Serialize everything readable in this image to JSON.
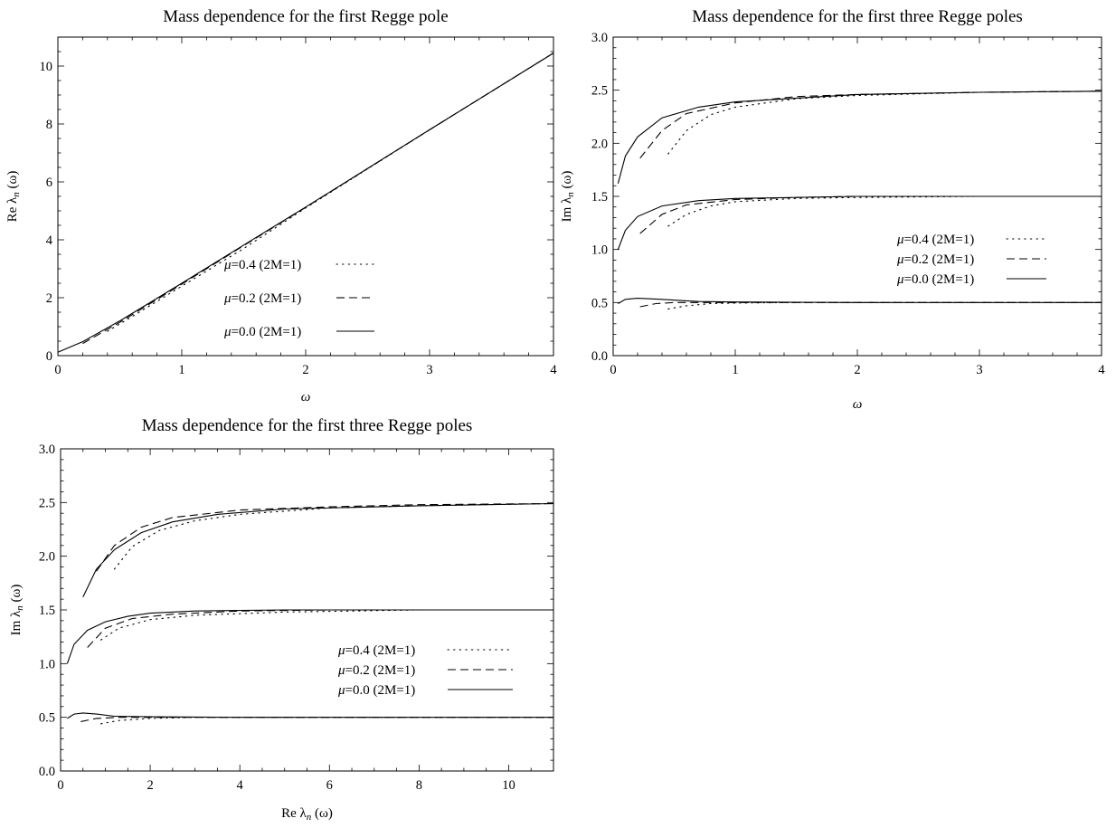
{
  "figure": {
    "legend_entries": [
      {
        "label": "μ=0.4 (2M=1)",
        "style": "dotted"
      },
      {
        "label": "μ=0.2 (2M=1)",
        "style": "dashed"
      },
      {
        "label": "μ=0.0 (2M=1)",
        "style": "solid"
      }
    ]
  },
  "chart_data": [
    {
      "type": "line",
      "title": "Mass dependence for the first Regge pole",
      "xlabel": "ω",
      "ylabel": "Re λ_n (ω)",
      "xlim": [
        0,
        4
      ],
      "ylim": [
        0,
        11
      ],
      "xticks": [
        0,
        1,
        2,
        3,
        4
      ],
      "yticks": [
        0,
        2,
        4,
        6,
        8,
        10
      ],
      "grid": false,
      "legend_position": "center",
      "series": [
        {
          "name": "μ=0.4 (2M=1)",
          "style": "dotted",
          "x": [
            0.4,
            0.6,
            1.0,
            1.5,
            2.0,
            3.0,
            4.0
          ],
          "y": [
            0.84,
            1.35,
            2.4,
            3.7,
            5.1,
            7.8,
            10.45
          ]
        },
        {
          "name": "μ=0.2 (2M=1)",
          "style": "dashed",
          "x": [
            0.2,
            0.5,
            1.0,
            1.5,
            2.0,
            3.0,
            4.0
          ],
          "y": [
            0.42,
            1.15,
            2.47,
            3.8,
            5.12,
            7.8,
            10.45
          ]
        },
        {
          "name": "μ=0.0 (2M=1)",
          "style": "solid",
          "x": [
            0.0,
            0.2,
            0.5,
            1.0,
            1.5,
            2.0,
            3.0,
            4.0
          ],
          "y": [
            0.12,
            0.48,
            1.2,
            2.5,
            3.82,
            5.13,
            7.8,
            10.45
          ]
        }
      ]
    },
    {
      "type": "line",
      "title": "Mass dependence for the first three Regge poles",
      "xlabel": "ω",
      "ylabel": "Im λ_n (ω)",
      "xlim": [
        0,
        4
      ],
      "ylim": [
        0,
        3
      ],
      "xticks": [
        0,
        1,
        2,
        3,
        4
      ],
      "yticks": [
        0.0,
        0.5,
        1.0,
        1.5,
        2.0,
        2.5,
        3.0
      ],
      "grid": false,
      "legend_position": "center-right",
      "series": [
        {
          "name": "μ=0.4 (2M=1)",
          "style": "dotted",
          "curves": [
            {
              "x": [
                0.45,
                0.6,
                0.8,
                1.0,
                1.5,
                2.0,
                3.0,
                4.0
              ],
              "y": [
                0.44,
                0.47,
                0.49,
                0.495,
                0.5,
                0.5,
                0.5,
                0.5
              ]
            },
            {
              "x": [
                0.45,
                0.6,
                0.8,
                1.0,
                1.5,
                2.0,
                3.0,
                4.0
              ],
              "y": [
                1.22,
                1.33,
                1.41,
                1.45,
                1.48,
                1.49,
                1.5,
                1.5
              ]
            },
            {
              "x": [
                0.45,
                0.6,
                0.8,
                1.0,
                1.5,
                2.0,
                3.0,
                4.0
              ],
              "y": [
                1.9,
                2.12,
                2.27,
                2.34,
                2.42,
                2.45,
                2.48,
                2.49
              ]
            }
          ]
        },
        {
          "name": "μ=0.2 (2M=1)",
          "style": "dashed",
          "curves": [
            {
              "x": [
                0.22,
                0.35,
                0.5,
                1.0,
                2.0,
                3.0,
                4.0
              ],
              "y": [
                0.46,
                0.49,
                0.5,
                0.5,
                0.5,
                0.5,
                0.5
              ]
            },
            {
              "x": [
                0.22,
                0.4,
                0.6,
                1.0,
                1.5,
                2.0,
                3.0,
                4.0
              ],
              "y": [
                1.15,
                1.33,
                1.42,
                1.47,
                1.49,
                1.5,
                1.5,
                1.5
              ]
            },
            {
              "x": [
                0.22,
                0.4,
                0.6,
                1.0,
                1.5,
                2.0,
                3.0,
                4.0
              ],
              "y": [
                1.86,
                2.12,
                2.28,
                2.38,
                2.44,
                2.46,
                2.48,
                2.49
              ]
            }
          ]
        },
        {
          "name": "μ=0.0 (2M=1)",
          "style": "solid",
          "curves": [
            {
              "x": [
                0.04,
                0.1,
                0.2,
                0.4,
                0.7,
                1.0,
                2.0,
                3.0,
                4.0
              ],
              "y": [
                0.49,
                0.53,
                0.54,
                0.53,
                0.51,
                0.505,
                0.5,
                0.5,
                0.5
              ]
            },
            {
              "x": [
                0.04,
                0.1,
                0.2,
                0.4,
                0.7,
                1.0,
                2.0,
                3.0,
                4.0
              ],
              "y": [
                1.0,
                1.18,
                1.31,
                1.41,
                1.46,
                1.48,
                1.5,
                1.5,
                1.5
              ]
            },
            {
              "x": [
                0.04,
                0.1,
                0.2,
                0.4,
                0.7,
                1.0,
                2.0,
                3.0,
                4.0
              ],
              "y": [
                1.62,
                1.88,
                2.06,
                2.24,
                2.34,
                2.39,
                2.46,
                2.48,
                2.49
              ]
            }
          ]
        }
      ]
    },
    {
      "type": "line",
      "title": "Mass dependence for the first three Regge poles",
      "xlabel": "Re λ_n (ω)",
      "ylabel": "Im λ_n (ω)",
      "xlim": [
        0,
        11
      ],
      "ylim": [
        0,
        3
      ],
      "xticks": [
        0,
        2,
        4,
        6,
        8,
        10
      ],
      "yticks": [
        0.0,
        0.5,
        1.0,
        1.5,
        2.0,
        2.5,
        3.0
      ],
      "grid": false,
      "legend_position": "center-right",
      "series": [
        {
          "name": "μ=0.4 (2M=1)",
          "style": "dotted",
          "curves": [
            {
              "x": [
                0.9,
                1.3,
                2.0,
                3.0,
                5.0,
                8.0,
                11.0
              ],
              "y": [
                0.44,
                0.47,
                0.49,
                0.5,
                0.5,
                0.5,
                0.5
              ]
            },
            {
              "x": [
                0.9,
                1.3,
                2.0,
                3.0,
                5.0,
                8.0,
                11.0
              ],
              "y": [
                1.22,
                1.33,
                1.41,
                1.45,
                1.48,
                1.5,
                1.5
              ]
            },
            {
              "x": [
                1.2,
                1.6,
                2.2,
                3.0,
                4.0,
                6.0,
                8.0,
                11.0
              ],
              "y": [
                1.88,
                2.09,
                2.24,
                2.33,
                2.39,
                2.45,
                2.47,
                2.49
              ]
            }
          ]
        },
        {
          "name": "μ=0.2 (2M=1)",
          "style": "dashed",
          "curves": [
            {
              "x": [
                0.45,
                0.8,
                1.3,
                2.5,
                5.0,
                8.0,
                11.0
              ],
              "y": [
                0.46,
                0.49,
                0.5,
                0.5,
                0.5,
                0.5,
                0.5
              ]
            },
            {
              "x": [
                0.6,
                1.0,
                1.6,
                2.5,
                4.0,
                6.0,
                11.0
              ],
              "y": [
                1.15,
                1.33,
                1.42,
                1.46,
                1.49,
                1.5,
                1.5
              ]
            },
            {
              "x": [
                0.8,
                1.2,
                1.8,
                2.5,
                4.0,
                6.0,
                8.0,
                11.0
              ],
              "y": [
                1.86,
                2.1,
                2.27,
                2.36,
                2.43,
                2.46,
                2.48,
                2.49
              ]
            }
          ]
        },
        {
          "name": "μ=0.0 (2M=1)",
          "style": "solid",
          "curves": [
            {
              "x": [
                0.15,
                0.3,
                0.5,
                0.8,
                1.2,
                2.0,
                4.0,
                8.0,
                11.0
              ],
              "y": [
                0.49,
                0.53,
                0.54,
                0.53,
                0.51,
                0.505,
                0.5,
                0.5,
                0.5
              ]
            },
            {
              "x": [
                0.15,
                0.3,
                0.6,
                1.0,
                1.5,
                2.0,
                3.0,
                5.0,
                8.0,
                11.0
              ],
              "y": [
                1.0,
                1.18,
                1.31,
                1.39,
                1.44,
                1.47,
                1.49,
                1.5,
                1.5,
                1.5
              ]
            },
            {
              "x": [
                0.5,
                0.8,
                1.2,
                1.8,
                2.5,
                3.5,
                5.0,
                8.0,
                11.0
              ],
              "y": [
                1.62,
                1.88,
                2.06,
                2.22,
                2.32,
                2.39,
                2.44,
                2.47,
                2.49
              ]
            }
          ]
        }
      ]
    }
  ]
}
